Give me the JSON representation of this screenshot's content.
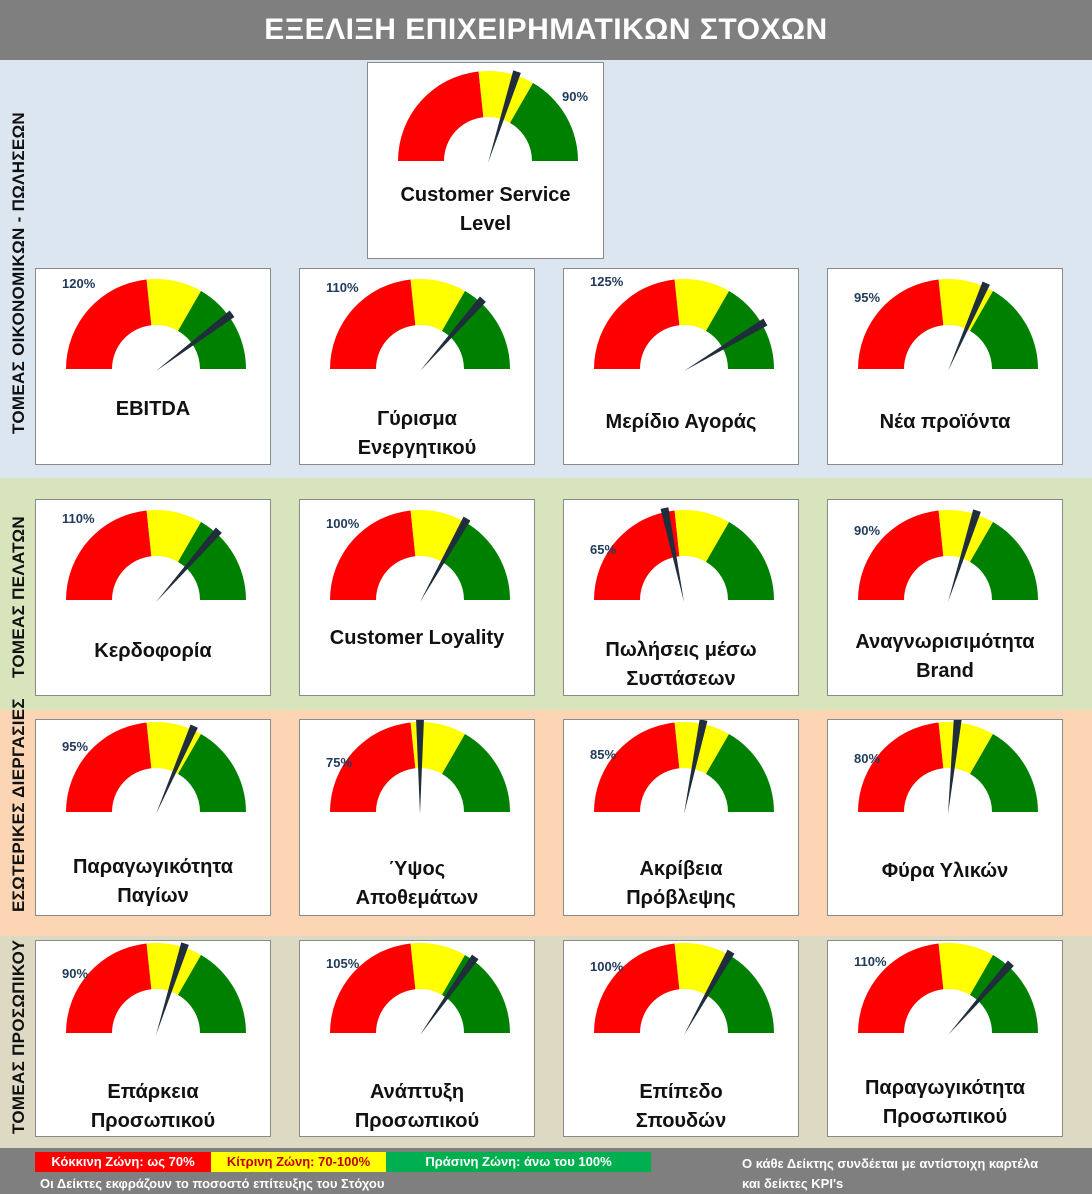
{
  "header": {
    "title": "ΕΞΕΛΙΞΗ ΕΠΙΧΕΙΡΗΜΑΤΙΚΩΝ ΣΤΟΧΩΝ"
  },
  "colors": {
    "red": "#ff0000",
    "yellow": "#ffff00",
    "green": "#008000",
    "needle": "#1f2d3d",
    "band_finance": "#dce6f1",
    "band_customers": "#d8e4bc",
    "band_process": "#fcd5b4",
    "band_people": "#ddd9c3"
  },
  "sections": [
    {
      "label": "ΤΟΜΕΑΣ ΟΙΚΟΝΟΜΙΚΩΝ - ΠΩΛΗΣΕΩΝ"
    },
    {
      "label": "ΤΟΜΕΑΣ ΠΕΛΑΤΩΝ"
    },
    {
      "label": "ΕΣΩΤΕΡΙΚΕΣ ΔΙΕΡΓΑΣΙΕΣ"
    },
    {
      "label": "ΤΟΜΕΑΣ ΠΡΟΣΩΠΙΚΟΥ"
    }
  ],
  "gauges": [
    {
      "name": "customer-service-level",
      "pct": "90%",
      "value": 90,
      "lines": [
        "Customer Service",
        "Level"
      ]
    },
    {
      "name": "ebitda",
      "pct": "120%",
      "value": 120,
      "lines": [
        "EBITDA"
      ]
    },
    {
      "name": "asset-turnover",
      "pct": "110%",
      "value": 110,
      "lines": [
        "Γύρισμα",
        "Ενεργητικού"
      ]
    },
    {
      "name": "market-share",
      "pct": "125%",
      "value": 125,
      "lines": [
        "Μερίδιο Αγοράς"
      ]
    },
    {
      "name": "new-products",
      "pct": "95%",
      "value": 95,
      "lines": [
        "Νέα προϊόντα"
      ]
    },
    {
      "name": "profitability",
      "pct": "110%",
      "value": 110,
      "lines": [
        "Κερδοφορία"
      ]
    },
    {
      "name": "customer-loyality",
      "pct": "100%",
      "value": 100,
      "lines": [
        "Customer Loyality"
      ]
    },
    {
      "name": "referral-sales",
      "pct": "65%",
      "value": 65,
      "lines": [
        "Πωλήσεις μέσω",
        "Συστάσεων"
      ]
    },
    {
      "name": "brand-awareness",
      "pct": "90%",
      "value": 90,
      "lines": [
        "Αναγνωρισιμότητα",
        "Brand"
      ]
    },
    {
      "name": "fixed-asset-productivity",
      "pct": "95%",
      "value": 95,
      "lines": [
        "Παραγωγικότητα",
        "Παγίων"
      ]
    },
    {
      "name": "inventory-level",
      "pct": "75%",
      "value": 75,
      "lines": [
        "Ύψος",
        "Αποθεμάτων"
      ]
    },
    {
      "name": "forecast-accuracy",
      "pct": "85%",
      "value": 85,
      "lines": [
        "Ακρίβεια",
        "Πρόβλεψης"
      ]
    },
    {
      "name": "material-waste",
      "pct": "80%",
      "value": 80,
      "lines": [
        "Φύρα Υλικών"
      ]
    },
    {
      "name": "staff-adequacy",
      "pct": "90%",
      "value": 90,
      "lines": [
        "Επάρκεια",
        "Προσωπικού"
      ]
    },
    {
      "name": "staff-development",
      "pct": "105%",
      "value": 105,
      "lines": [
        "Ανάπτυξη",
        "Προσωπικού"
      ]
    },
    {
      "name": "education-level",
      "pct": "100%",
      "value": 100,
      "lines": [
        "Επίπεδο",
        "Σπουδών"
      ]
    },
    {
      "name": "staff-productivity",
      "pct": "110%",
      "value": 110,
      "lines": [
        "Παραγωγικότητα",
        "Προσωπικού"
      ]
    }
  ],
  "legend": {
    "red": "Κόκκινη Ζώνη: ως 70%",
    "yellow": "Κίτρινη Ζώνη: 70-100%",
    "green": "Πράσινη Ζώνη: άνω του 100%",
    "note_left": "Οι Δείκτες εκφράζουν το ποσοστό επίτευξης του Στόχου",
    "note_right_1": "Ο κάθε Δείκτης συνδέεται με αντίστοιχη καρτέλα",
    "note_right_2": "και δείκτες KPI's"
  }
}
